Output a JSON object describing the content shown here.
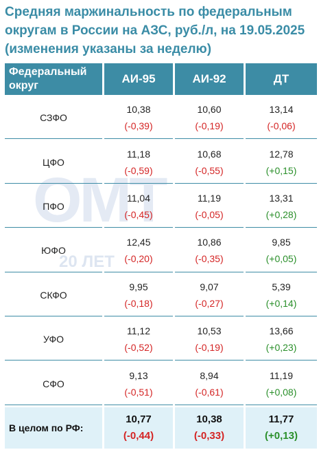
{
  "title": "Средняя маржинальность по федеральным округам в России на АЗС, руб./л, на 19.05.2025 (изменения указаны за неделю)",
  "watermark": {
    "logo": "ОМТ",
    "years": "20 ЛЕТ"
  },
  "table": {
    "headers": [
      "Федеральный округ",
      "АИ-95",
      "АИ-92",
      "ДТ"
    ],
    "rows": [
      {
        "region": "СЗФО",
        "ai95": "10,38",
        "ai95_chg": "(-0,39)",
        "ai92": "10,60",
        "ai92_chg": "(-0,19)",
        "dt": "13,14",
        "dt_chg": "(-0,06)"
      },
      {
        "region": "ЦФО",
        "ai95": "11,18",
        "ai95_chg": "(-0,59)",
        "ai92": "10,68",
        "ai92_chg": "(-0,55)",
        "dt": "12,78",
        "dt_chg": "(+0,15)"
      },
      {
        "region": "ПФО",
        "ai95": "11,04",
        "ai95_chg": "(-0,45)",
        "ai92": "11,19",
        "ai92_chg": "(-0,05)",
        "dt": "13,31",
        "dt_chg": "(+0,28)"
      },
      {
        "region": "ЮФО",
        "ai95": "12,45",
        "ai95_chg": "(-0,20)",
        "ai92": "10,86",
        "ai92_chg": "(-0,35)",
        "dt": "9,85",
        "dt_chg": "(+0,05)"
      },
      {
        "region": "СКФО",
        "ai95": "9,95",
        "ai95_chg": "(-0,18)",
        "ai92": "9,07",
        "ai92_chg": "(-0,27)",
        "dt": "5,39",
        "dt_chg": "(+0,14)"
      },
      {
        "region": "УФО",
        "ai95": "11,12",
        "ai95_chg": "(-0,52)",
        "ai92": "10,53",
        "ai92_chg": "(-0,19)",
        "dt": "13,66",
        "dt_chg": "(+0,23)"
      },
      {
        "region": "СФО",
        "ai95": "9,13",
        "ai95_chg": "(-0,51)",
        "ai92": "8,94",
        "ai92_chg": "(-0,61)",
        "dt": "11,19",
        "dt_chg": "(+0,08)"
      }
    ],
    "total": {
      "region": "В целом по РФ:",
      "ai95": "10,77",
      "ai95_chg": "(-0,44)",
      "ai92": "10,38",
      "ai92_chg": "(-0,33)",
      "dt": "11,77",
      "dt_chg": "(+0,13)"
    }
  },
  "colors": {
    "accent": "#3d8ca5",
    "title": "#3a8ca6",
    "negative": "#d42424",
    "positive": "#2a8f2a",
    "total_bg": "#dff1f8"
  }
}
